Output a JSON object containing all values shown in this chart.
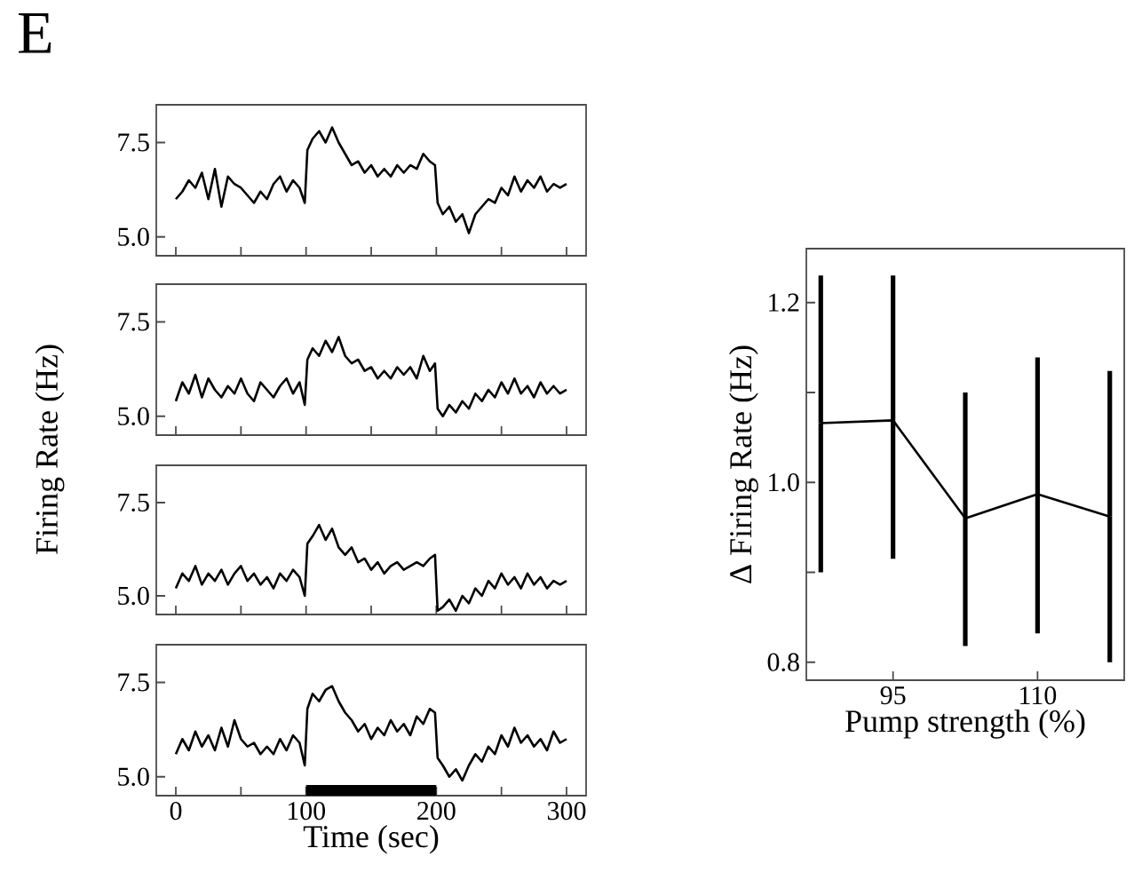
{
  "chart_data": [
    {
      "type": "line",
      "annotations": [
        "E"
      ],
      "ylabel": "Firing Rate (Hz)",
      "xlim": [
        -15,
        315
      ],
      "ylim": [
        4.5,
        8.5
      ],
      "yticks": [
        {
          "value": 5,
          "label": "5.0"
        },
        {
          "value": 7.5,
          "label": "7.5"
        }
      ],
      "xticks": [
        0,
        {
          "value": 50,
          "label": null
        },
        100,
        {
          "value": 150,
          "label": null
        },
        200,
        {
          "value": 250,
          "label": null
        },
        300
      ],
      "tick_labels": "y",
      "x": [
        0,
        5,
        10,
        15,
        20,
        25,
        30,
        35,
        40,
        45,
        50,
        55,
        60,
        65,
        70,
        75,
        80,
        85,
        90,
        95,
        99,
        101,
        105,
        110,
        115,
        120,
        125,
        130,
        135,
        140,
        145,
        150,
        155,
        160,
        165,
        170,
        175,
        180,
        185,
        190,
        195,
        199,
        201,
        205,
        210,
        215,
        220,
        225,
        230,
        235,
        240,
        245,
        250,
        255,
        260,
        265,
        270,
        275,
        280,
        285,
        290,
        295,
        300
      ],
      "series": [
        {
          "color": "#000000",
          "values": [
            6.0,
            6.2,
            6.5,
            6.3,
            6.7,
            6.0,
            6.8,
            5.8,
            6.6,
            6.4,
            6.3,
            6.1,
            5.9,
            6.2,
            6.0,
            6.4,
            6.6,
            6.2,
            6.5,
            6.3,
            5.9,
            7.3,
            7.6,
            7.8,
            7.5,
            7.9,
            7.5,
            7.2,
            6.9,
            7.0,
            6.7,
            6.9,
            6.6,
            6.8,
            6.6,
            6.9,
            6.7,
            6.9,
            6.8,
            7.2,
            7.0,
            6.9,
            5.9,
            5.6,
            5.8,
            5.4,
            5.6,
            5.1,
            5.6,
            5.8,
            6.0,
            5.9,
            6.3,
            6.1,
            6.6,
            6.2,
            6.5,
            6.3,
            6.6,
            6.2,
            6.4,
            6.3,
            6.4
          ]
        }
      ]
    },
    {
      "type": "line",
      "xlim": [
        -15,
        315
      ],
      "ylim": [
        4.5,
        8.5
      ],
      "yticks": [
        {
          "value": 5,
          "label": "5.0"
        },
        {
          "value": 7.5,
          "label": "7.5"
        }
      ],
      "xticks": [
        0,
        {
          "value": 50,
          "label": null
        },
        100,
        {
          "value": 150,
          "label": null
        },
        200,
        {
          "value": 250,
          "label": null
        },
        300
      ],
      "tick_labels": "y",
      "x": [
        0,
        5,
        10,
        15,
        20,
        25,
        30,
        35,
        40,
        45,
        50,
        55,
        60,
        65,
        70,
        75,
        80,
        85,
        90,
        95,
        99,
        101,
        105,
        110,
        115,
        120,
        125,
        130,
        135,
        140,
        145,
        150,
        155,
        160,
        165,
        170,
        175,
        180,
        185,
        190,
        195,
        199,
        201,
        205,
        210,
        215,
        220,
        225,
        230,
        235,
        240,
        245,
        250,
        255,
        260,
        265,
        270,
        275,
        280,
        285,
        290,
        295,
        300
      ],
      "series": [
        {
          "color": "#000000",
          "values": [
            5.4,
            5.9,
            5.6,
            6.1,
            5.5,
            6.0,
            5.7,
            5.5,
            5.8,
            5.6,
            6.0,
            5.6,
            5.4,
            5.9,
            5.7,
            5.5,
            5.8,
            6.0,
            5.6,
            5.9,
            5.3,
            6.5,
            6.8,
            6.6,
            7.0,
            6.7,
            7.1,
            6.6,
            6.4,
            6.5,
            6.2,
            6.3,
            6.0,
            6.2,
            6.0,
            6.3,
            6.1,
            6.3,
            6.0,
            6.6,
            6.2,
            6.4,
            5.2,
            5.0,
            5.3,
            5.1,
            5.4,
            5.2,
            5.6,
            5.4,
            5.7,
            5.5,
            5.9,
            5.6,
            6.0,
            5.6,
            5.8,
            5.5,
            5.9,
            5.6,
            5.8,
            5.6,
            5.7
          ]
        }
      ]
    },
    {
      "type": "line",
      "xlim": [
        -15,
        315
      ],
      "ylim": [
        4.5,
        8.5
      ],
      "yticks": [
        {
          "value": 5,
          "label": "5.0"
        },
        {
          "value": 7.5,
          "label": "7.5"
        }
      ],
      "xticks": [
        0,
        {
          "value": 50,
          "label": null
        },
        100,
        {
          "value": 150,
          "label": null
        },
        200,
        {
          "value": 250,
          "label": null
        },
        300
      ],
      "tick_labels": "y",
      "x": [
        0,
        5,
        10,
        15,
        20,
        25,
        30,
        35,
        40,
        45,
        50,
        55,
        60,
        65,
        70,
        75,
        80,
        85,
        90,
        95,
        99,
        101,
        105,
        110,
        115,
        120,
        125,
        130,
        135,
        140,
        145,
        150,
        155,
        160,
        165,
        170,
        175,
        180,
        185,
        190,
        195,
        199,
        201,
        205,
        210,
        215,
        220,
        225,
        230,
        235,
        240,
        245,
        250,
        255,
        260,
        265,
        270,
        275,
        280,
        285,
        290,
        295,
        300
      ],
      "series": [
        {
          "color": "#000000",
          "values": [
            5.2,
            5.6,
            5.4,
            5.8,
            5.3,
            5.6,
            5.4,
            5.7,
            5.3,
            5.6,
            5.8,
            5.4,
            5.6,
            5.3,
            5.5,
            5.2,
            5.6,
            5.4,
            5.7,
            5.5,
            5.0,
            6.4,
            6.6,
            6.9,
            6.5,
            6.8,
            6.3,
            6.1,
            6.3,
            5.9,
            6.0,
            5.7,
            5.9,
            5.6,
            5.8,
            5.9,
            5.7,
            5.8,
            5.9,
            5.8,
            6.0,
            6.1,
            4.6,
            4.7,
            4.9,
            4.6,
            5.0,
            4.8,
            5.2,
            5.0,
            5.4,
            5.2,
            5.6,
            5.3,
            5.5,
            5.2,
            5.6,
            5.3,
            5.5,
            5.2,
            5.4,
            5.3,
            5.4
          ]
        }
      ]
    },
    {
      "type": "line",
      "xlabel": "Time (sec)",
      "xlim": [
        -15,
        315
      ],
      "ylim": [
        4.5,
        8.5
      ],
      "yticks": [
        {
          "value": 5,
          "label": "5.0"
        },
        {
          "value": 7.5,
          "label": "7.5"
        }
      ],
      "xticks": [
        0,
        {
          "value": 50,
          "label": null
        },
        100,
        {
          "value": 150,
          "label": null
        },
        200,
        {
          "value": 250,
          "label": null
        },
        300
      ],
      "bands": [
        {
          "axis": "x",
          "from": 100,
          "to": 200,
          "color": "#000000"
        }
      ],
      "x": [
        0,
        5,
        10,
        15,
        20,
        25,
        30,
        35,
        40,
        45,
        50,
        55,
        60,
        65,
        70,
        75,
        80,
        85,
        90,
        95,
        99,
        101,
        105,
        110,
        115,
        120,
        125,
        130,
        135,
        140,
        145,
        150,
        155,
        160,
        165,
        170,
        175,
        180,
        185,
        190,
        195,
        199,
        201,
        205,
        210,
        215,
        220,
        225,
        230,
        235,
        240,
        245,
        250,
        255,
        260,
        265,
        270,
        275,
        280,
        285,
        290,
        295,
        300
      ],
      "series": [
        {
          "color": "#000000",
          "values": [
            5.6,
            6.0,
            5.7,
            6.2,
            5.8,
            6.1,
            5.7,
            6.3,
            5.8,
            6.5,
            6.0,
            5.8,
            5.9,
            5.6,
            5.8,
            5.6,
            6.0,
            5.7,
            6.1,
            5.9,
            5.3,
            6.8,
            7.2,
            7.0,
            7.3,
            7.4,
            7.0,
            6.7,
            6.5,
            6.2,
            6.4,
            6.0,
            6.3,
            6.1,
            6.5,
            6.2,
            6.4,
            6.1,
            6.6,
            6.4,
            6.8,
            6.7,
            5.5,
            5.3,
            5.0,
            5.2,
            4.9,
            5.3,
            5.6,
            5.4,
            5.8,
            5.6,
            6.1,
            5.8,
            6.3,
            5.9,
            6.1,
            5.8,
            6.0,
            5.7,
            6.2,
            5.9,
            6.0
          ]
        }
      ]
    },
    {
      "type": "line",
      "xlabel": "Pump strength (%)",
      "ylabel": "Δ Firing Rate (Hz)",
      "xlim": [
        86,
        119
      ],
      "ylim": [
        0.78,
        1.26
      ],
      "xticks": [
        95,
        110
      ],
      "yticks": [
        0.8,
        {
          "value": 0.9,
          "label": null
        },
        {
          "value": 1.0,
          "label": "1.0"
        },
        {
          "value": 1.1,
          "label": null
        },
        1.2
      ],
      "x": [
        87.5,
        95,
        102.5,
        110,
        117.5
      ],
      "series": [
        {
          "color": "#000000",
          "values": [
            1.066,
            1.069,
            0.96,
            0.987,
            0.962
          ],
          "errors": [
            [
              0.9,
              1.23
            ],
            [
              0.915,
              1.23
            ],
            [
              0.818,
              1.1
            ],
            [
              0.832,
              1.139
            ],
            [
              0.8,
              1.124
            ]
          ]
        }
      ]
    }
  ]
}
